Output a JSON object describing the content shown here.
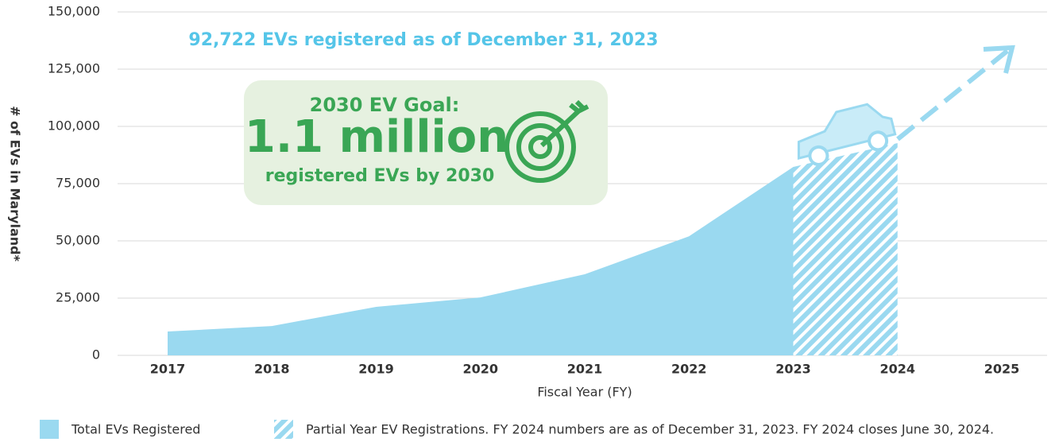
{
  "chart_data": {
    "type": "area",
    "y_label": "# of EVs in Maryland*",
    "x_label": "Fiscal Year (FY)",
    "categories": [
      "2017",
      "2018",
      "2019",
      "2020",
      "2021",
      "2022",
      "2023",
      "2024",
      "2025"
    ],
    "series": [
      {
        "name": "Total EVs Registered",
        "color": "#9ad9f0",
        "values": [
          10400,
          12800,
          21200,
          25300,
          35400,
          52000,
          82300,
          null,
          null
        ]
      },
      {
        "name": "Partial Year EV Registrations. FY 2024 numbers are as of December 31, 2023. FY 2024 closes June 30, 2024.",
        "color": "#9ad9f0",
        "hatched": true,
        "values": [
          null,
          null,
          null,
          null,
          null,
          null,
          82300,
          92722,
          null
        ]
      }
    ],
    "ylim": [
      0,
      150000
    ],
    "yticks": [
      0,
      {
        "value": 25000,
        "label": "25,000"
      },
      {
        "value": 50000,
        "label": "50,000"
      },
      {
        "value": 75000,
        "label": "75,000"
      },
      {
        "value": 100000,
        "label": "100,000"
      },
      {
        "value": 125000,
        "label": "125,000"
      },
      {
        "value": 150000,
        "label": "150,000"
      }
    ],
    "grid": true,
    "annotations": {
      "headline": "92,722 EVs registered as of December 31, 2023",
      "goal_line1": "2030 EV Goal:",
      "goal_line2": "1.1 million",
      "goal_line3": "registered EVs by 2030"
    }
  }
}
